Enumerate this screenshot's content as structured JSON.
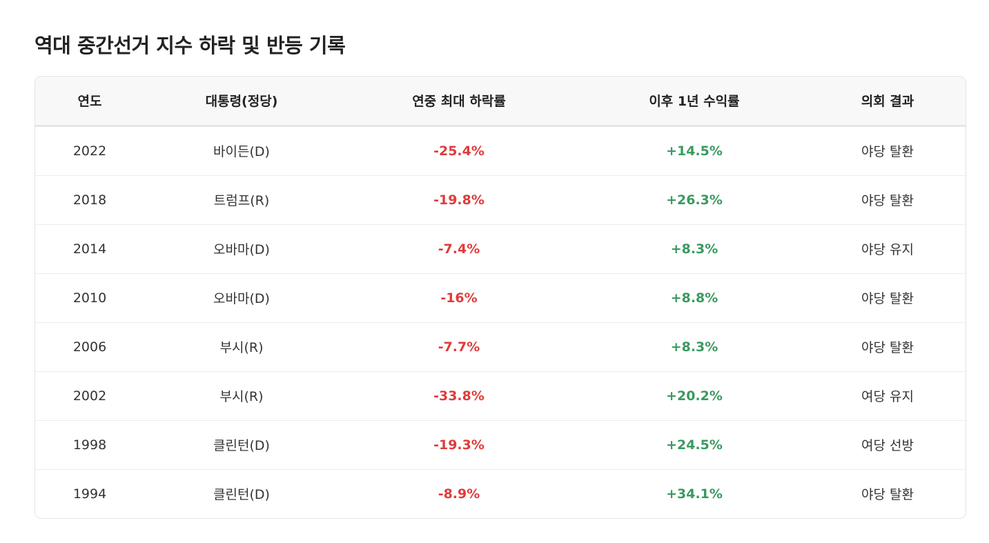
{
  "title": "역대 중간선거 지수 하락 및 반등 기록",
  "table": {
    "headers": [
      "연도",
      "대통령(정당)",
      "연중 최대 하락률",
      "이후 1년 수익률",
      "의회 결과"
    ],
    "rows": [
      {
        "year": "2022",
        "president": "바이든(D)",
        "max_drop": "-25.4%",
        "one_year_return": "+14.5%",
        "congress": "야당 탈환"
      },
      {
        "year": "2018",
        "president": "트럼프(R)",
        "max_drop": "-19.8%",
        "one_year_return": "+26.3%",
        "congress": "야당 탈환"
      },
      {
        "year": "2014",
        "president": "오바마(D)",
        "max_drop": "-7.4%",
        "one_year_return": "+8.3%",
        "congress": "야당 유지"
      },
      {
        "year": "2010",
        "president": "오바마(D)",
        "max_drop": "-16%",
        "one_year_return": "+8.8%",
        "congress": "야당 탈환"
      },
      {
        "year": "2006",
        "president": "부시(R)",
        "max_drop": "-7.7%",
        "one_year_return": "+8.3%",
        "congress": "야당 탈환"
      },
      {
        "year": "2002",
        "president": "부시(R)",
        "max_drop": "-33.8%",
        "one_year_return": "+20.2%",
        "congress": "여당 유지"
      },
      {
        "year": "1998",
        "president": "클린턴(D)",
        "max_drop": "-19.3%",
        "one_year_return": "+24.5%",
        "congress": "여당 선방"
      },
      {
        "year": "1994",
        "president": "클린턴(D)",
        "max_drop": "-8.9%",
        "one_year_return": "+34.1%",
        "congress": "야당 탈환"
      }
    ]
  },
  "colors": {
    "negative": "#e03b3b",
    "positive": "#3a9a5f",
    "header_bg": "#f8f8f8"
  }
}
